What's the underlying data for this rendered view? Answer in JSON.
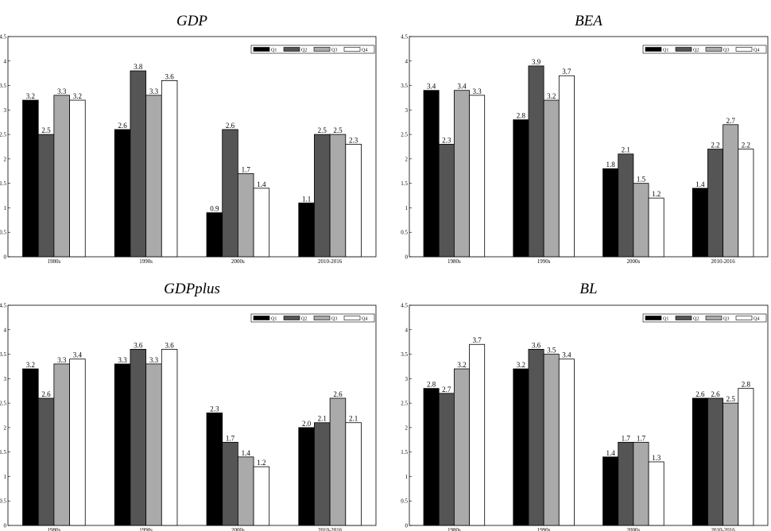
{
  "chart_data": [
    {
      "type": "bar",
      "title": "GDP",
      "categories": [
        "1980s",
        "1990s",
        "2000s",
        "2010-2016"
      ],
      "series": [
        {
          "name": "Q1",
          "values": [
            3.2,
            2.6,
            0.9,
            1.1
          ],
          "color": "#000000"
        },
        {
          "name": "Q2",
          "values": [
            2.5,
            3.8,
            2.6,
            2.5
          ],
          "color": "#555555"
        },
        {
          "name": "Q3",
          "values": [
            3.3,
            3.3,
            1.7,
            2.5
          ],
          "color": "#aaaaaa"
        },
        {
          "name": "Q4",
          "values": [
            3.2,
            3.6,
            1.4,
            2.3
          ],
          "color": "#ffffff"
        }
      ],
      "ylim": [
        0,
        4.5
      ],
      "yticks": [
        "0",
        "0.5",
        "1",
        "1.5",
        "2",
        "2.5",
        "3",
        "3.5",
        "4",
        "4.5"
      ],
      "legend_position": "top-right",
      "grid": false
    },
    {
      "type": "bar",
      "title": "BEA",
      "categories": [
        "1980s",
        "1990s",
        "2000s",
        "2010-2016"
      ],
      "series": [
        {
          "name": "Q1",
          "values": [
            3.4,
            2.8,
            1.8,
            1.4
          ],
          "color": "#000000"
        },
        {
          "name": "Q2",
          "values": [
            2.3,
            3.9,
            2.1,
            2.2
          ],
          "color": "#555555"
        },
        {
          "name": "Q3",
          "values": [
            3.4,
            3.2,
            1.5,
            2.7
          ],
          "color": "#aaaaaa"
        },
        {
          "name": "Q4",
          "values": [
            3.3,
            3.7,
            1.2,
            2.2
          ],
          "color": "#ffffff"
        }
      ],
      "ylim": [
        0,
        4.5
      ],
      "yticks": [
        "0",
        "0.5",
        "1",
        "1.5",
        "2",
        "2.5",
        "3",
        "3.5",
        "4",
        "4.5"
      ],
      "legend_position": "top-right",
      "grid": false
    },
    {
      "type": "bar",
      "title": "GDPplus",
      "categories": [
        "1980s",
        "1990s",
        "2000s",
        "2010-2016"
      ],
      "series": [
        {
          "name": "Q1",
          "values": [
            3.2,
            3.3,
            2.3,
            2.0
          ],
          "labels": [
            "3.2",
            "3.3",
            "2.3",
            "2.0"
          ],
          "color": "#000000"
        },
        {
          "name": "Q2",
          "values": [
            2.6,
            3.6,
            1.7,
            2.1
          ],
          "color": "#555555"
        },
        {
          "name": "Q3",
          "values": [
            3.3,
            3.3,
            1.4,
            2.6
          ],
          "color": "#aaaaaa"
        },
        {
          "name": "Q4",
          "values": [
            3.4,
            3.6,
            1.2,
            2.1
          ],
          "color": "#ffffff"
        }
      ],
      "ylim": [
        0,
        4.5
      ],
      "yticks": [
        "0",
        "0.5",
        "1",
        "1.5",
        "2",
        "2.5",
        "3",
        "3.5",
        "4",
        "4.5"
      ],
      "legend_position": "top-right",
      "grid": false
    },
    {
      "type": "bar",
      "title": "BL",
      "categories": [
        "1980s",
        "1990s",
        "2000s",
        "2010-2016"
      ],
      "series": [
        {
          "name": "Q1",
          "values": [
            2.8,
            3.2,
            1.4,
            2.6
          ],
          "color": "#000000"
        },
        {
          "name": "Q2",
          "values": [
            2.7,
            3.6,
            1.7,
            2.6
          ],
          "color": "#555555"
        },
        {
          "name": "Q3",
          "values": [
            3.2,
            3.5,
            1.7,
            2.5
          ],
          "color": "#aaaaaa"
        },
        {
          "name": "Q4",
          "values": [
            3.7,
            3.4,
            1.3,
            2.8
          ],
          "color": "#ffffff"
        }
      ],
      "ylim": [
        0,
        4.5
      ],
      "yticks": [
        "0",
        "0.5",
        "1",
        "1.5",
        "2",
        "2.5",
        "3",
        "3.5",
        "4",
        "4.5"
      ],
      "legend_position": "top-right",
      "grid": false
    }
  ]
}
